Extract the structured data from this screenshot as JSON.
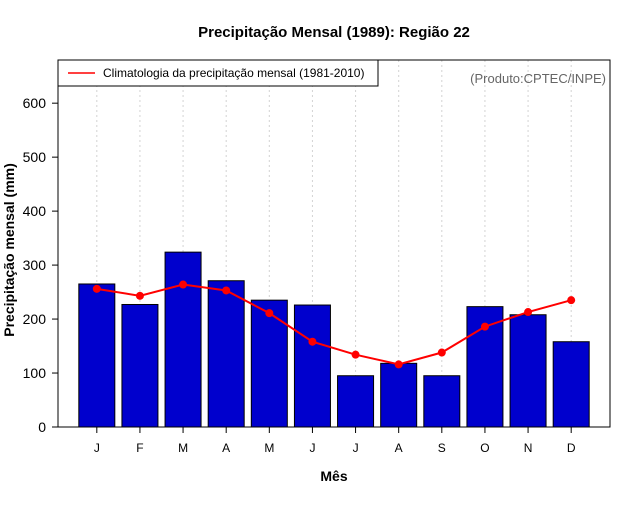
{
  "chart_data": {
    "type": "bar",
    "title": "Precipitação Mensal (1989): Região 22",
    "xlabel": "Mês",
    "ylabel": "Precipitação mensal (mm)",
    "ylim": [
      0,
      680
    ],
    "yticks": [
      0,
      100,
      200,
      300,
      400,
      500,
      600
    ],
    "categories": [
      "J",
      "F",
      "M",
      "A",
      "M",
      "J",
      "J",
      "A",
      "S",
      "O",
      "N",
      "D"
    ],
    "series": [
      {
        "name": "Precipitação mensal (1989)",
        "kind": "bar",
        "color": "#0000CD",
        "values": [
          265,
          227,
          324,
          271,
          235,
          226,
          95,
          118,
          95,
          223,
          208,
          158
        ]
      },
      {
        "name": "Climatologia da precipitação mensal (1981-2010)",
        "kind": "line",
        "color": "#FF0000",
        "values": [
          256,
          243,
          264,
          253,
          211,
          158,
          134,
          116,
          138,
          186,
          213,
          235
        ]
      }
    ],
    "legend": {
      "position": "top-left",
      "label": "Climatologia da precipitação mensal (1981-2010)"
    },
    "annotation": "(Produto:CPTEC/INPE)",
    "grid": {
      "vertical": true,
      "horizontal": false
    }
  }
}
